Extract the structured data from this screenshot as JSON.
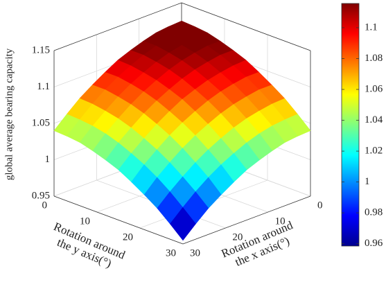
{
  "chart_data": {
    "type": "surface3d",
    "zlabel": "global average bearing capacity",
    "ylabel": [
      "Rotation around",
      "the y axis(°)"
    ],
    "xlabel": [
      "Rotation around",
      "the x axis(°)"
    ],
    "x": [
      0,
      3,
      6,
      9,
      12,
      15,
      18,
      21,
      24,
      27,
      30
    ],
    "y": [
      0,
      3,
      6,
      9,
      12,
      15,
      18,
      21,
      24,
      27,
      30
    ],
    "xlim": [
      0,
      30
    ],
    "ylim": [
      0,
      30
    ],
    "zlim": [
      0.95,
      1.15
    ],
    "xticks": [
      0,
      10,
      20,
      30
    ],
    "yticks": [
      0,
      10,
      20,
      30
    ],
    "zticks": [
      0.95,
      1,
      1.05,
      1.1,
      1.15
    ],
    "clim": [
      0.9585,
      1.1157
    ],
    "colormap": "jet",
    "cticks": [
      0.96,
      0.98,
      1,
      1.02,
      1.04,
      1.06,
      1.08,
      1.1
    ],
    "grid": true,
    "z": [
      [
        1.125,
        1.124,
        1.122,
        1.117,
        1.111,
        1.104,
        1.094,
        1.083,
        1.071,
        1.056,
        1.04
      ],
      [
        1.124,
        1.123,
        1.121,
        1.117,
        1.111,
        1.103,
        1.094,
        1.083,
        1.07,
        1.055,
        1.039
      ],
      [
        1.122,
        1.121,
        1.118,
        1.114,
        1.108,
        1.1,
        1.091,
        1.08,
        1.067,
        1.053,
        1.037
      ],
      [
        1.117,
        1.117,
        1.114,
        1.11,
        1.104,
        1.096,
        1.087,
        1.076,
        1.063,
        1.049,
        1.032
      ],
      [
        1.111,
        1.111,
        1.108,
        1.104,
        1.098,
        1.09,
        1.081,
        1.07,
        1.057,
        1.043,
        1.026
      ],
      [
        1.104,
        1.103,
        1.1,
        1.096,
        1.09,
        1.083,
        1.073,
        1.062,
        1.049,
        1.035,
        1.019
      ],
      [
        1.094,
        1.094,
        1.091,
        1.087,
        1.081,
        1.073,
        1.064,
        1.053,
        1.04,
        1.026,
        1.009
      ],
      [
        1.083,
        1.083,
        1.08,
        1.076,
        1.07,
        1.062,
        1.053,
        1.042,
        1.029,
        1.015,
        0.998
      ],
      [
        1.071,
        1.07,
        1.067,
        1.063,
        1.057,
        1.049,
        1.04,
        1.029,
        1.016,
        1.002,
        0.986
      ],
      [
        1.056,
        1.055,
        1.053,
        1.049,
        1.043,
        1.035,
        1.026,
        1.015,
        1.002,
        0.987,
        0.971
      ],
      [
        1.04,
        1.039,
        1.037,
        1.032,
        1.026,
        1.019,
        1.009,
        0.998,
        0.986,
        0.971,
        0.955
      ]
    ]
  }
}
